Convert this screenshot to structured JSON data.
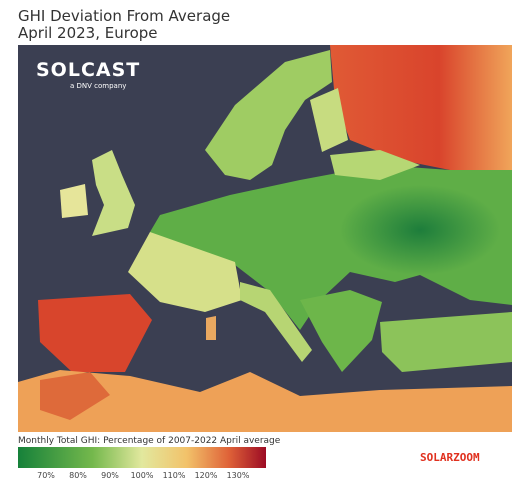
{
  "header": {
    "title": "GHI Deviation From Average",
    "subtitle": "April 2023, Europe"
  },
  "logo": {
    "name": "SOLCAST",
    "tagline": "a DNV company"
  },
  "legend": {
    "label": "Monthly Total GHI: Percentage of 2007-2022 April average",
    "ticks": [
      "70%",
      "80%",
      "90%",
      "100%",
      "110%",
      "120%",
      "130%"
    ]
  },
  "watermark": "SOLARZOOM"
}
